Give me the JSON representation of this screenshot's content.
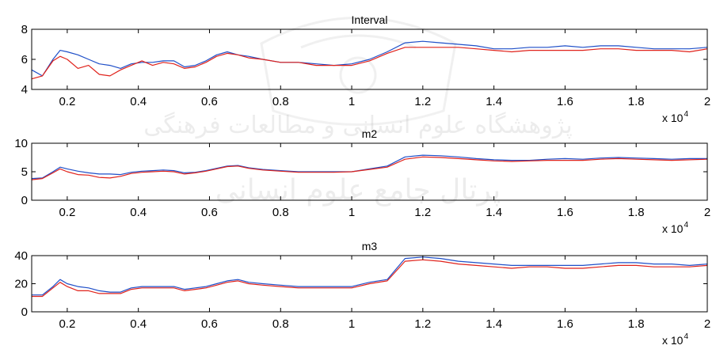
{
  "colors": {
    "series_blue": "#1f4fc8",
    "series_red": "#e0221b",
    "watermark": "#9a9a9a"
  },
  "watermark": {
    "line1": "پژوهشگاه علوم انسانی و مطالعات فرهنگی",
    "line2": "پرتال جامع علوم انسانی"
  },
  "chart_data": [
    {
      "type": "line",
      "title": "Interval",
      "xlim": [
        1000,
        20000
      ],
      "ylim": [
        4,
        8
      ],
      "xticks": [
        2000,
        4000,
        6000,
        8000,
        10000,
        12000,
        14000,
        16000,
        18000,
        20000
      ],
      "xtick_labels": [
        "0.2",
        "0.4",
        "0.6",
        "0.8",
        "1",
        "1.2",
        "1.4",
        "1.6",
        "1.8",
        "2"
      ],
      "yticks": [
        4,
        6,
        8
      ],
      "ytick_labels": [
        "4",
        "6",
        "8"
      ],
      "x_multiplier_base": "x 10",
      "x_multiplier_exp": "4",
      "x": [
        1000,
        1300,
        1600,
        1800,
        2000,
        2300,
        2600,
        2900,
        3200,
        3500,
        3800,
        4100,
        4400,
        4700,
        5000,
        5300,
        5600,
        5900,
        6200,
        6500,
        6800,
        7100,
        7500,
        8000,
        8500,
        9000,
        9500,
        10000,
        10500,
        11000,
        11500,
        12000,
        12500,
        13000,
        13500,
        14000,
        14500,
        15000,
        15500,
        16000,
        16500,
        17000,
        17500,
        18000,
        18500,
        19000,
        19500,
        20000
      ],
      "series": [
        {
          "color": "#1f4fc8",
          "values": [
            5.3,
            4.9,
            6.0,
            6.6,
            6.5,
            6.3,
            6.0,
            5.7,
            5.6,
            5.4,
            5.7,
            5.8,
            5.8,
            5.9,
            5.9,
            5.5,
            5.6,
            5.9,
            6.3,
            6.5,
            6.3,
            6.2,
            6.0,
            5.8,
            5.8,
            5.7,
            5.6,
            5.7,
            6.0,
            6.5,
            7.1,
            7.2,
            7.1,
            7.0,
            6.9,
            6.7,
            6.7,
            6.8,
            6.8,
            6.9,
            6.8,
            6.9,
            6.9,
            6.8,
            6.7,
            6.7,
            6.7,
            6.8
          ]
        },
        {
          "color": "#e0221b",
          "values": [
            4.7,
            4.9,
            5.9,
            6.2,
            6.0,
            5.4,
            5.6,
            5.0,
            4.9,
            5.3,
            5.6,
            5.9,
            5.6,
            5.8,
            5.7,
            5.4,
            5.5,
            5.8,
            6.2,
            6.4,
            6.3,
            6.1,
            6.0,
            5.8,
            5.8,
            5.6,
            5.6,
            5.6,
            5.9,
            6.4,
            6.8,
            6.8,
            6.8,
            6.8,
            6.7,
            6.6,
            6.5,
            6.6,
            6.6,
            6.6,
            6.6,
            6.7,
            6.7,
            6.6,
            6.6,
            6.6,
            6.5,
            6.7
          ]
        }
      ]
    },
    {
      "type": "line",
      "title": "m2",
      "xlim": [
        1000,
        20000
      ],
      "ylim": [
        0,
        10
      ],
      "xticks": [
        2000,
        4000,
        6000,
        8000,
        10000,
        12000,
        14000,
        16000,
        18000,
        20000
      ],
      "xtick_labels": [
        "0.2",
        "0.4",
        "0.6",
        "0.8",
        "1",
        "1.2",
        "1.4",
        "1.6",
        "1.8",
        "2"
      ],
      "yticks": [
        0,
        5,
        10
      ],
      "ytick_labels": [
        "0",
        "5",
        "10"
      ],
      "x_multiplier_base": "x 10",
      "x_multiplier_exp": "4",
      "x": [
        1000,
        1300,
        1600,
        1800,
        2000,
        2300,
        2600,
        2900,
        3200,
        3500,
        3800,
        4100,
        4400,
        4700,
        5000,
        5300,
        5600,
        5900,
        6200,
        6500,
        6800,
        7100,
        7500,
        8000,
        8500,
        9000,
        9500,
        10000,
        10500,
        11000,
        11500,
        12000,
        12500,
        13000,
        13500,
        14000,
        14500,
        15000,
        15500,
        16000,
        16500,
        17000,
        17500,
        18000,
        18500,
        19000,
        19500,
        20000
      ],
      "series": [
        {
          "color": "#1f4fc8",
          "values": [
            3.8,
            3.9,
            5.0,
            5.8,
            5.5,
            5.1,
            4.8,
            4.6,
            4.6,
            4.5,
            4.9,
            5.1,
            5.2,
            5.3,
            5.2,
            4.8,
            4.9,
            5.2,
            5.6,
            6.0,
            6.1,
            5.7,
            5.4,
            5.2,
            5.0,
            5.0,
            5.0,
            5.0,
            5.5,
            6.0,
            7.6,
            7.9,
            7.8,
            7.6,
            7.3,
            7.1,
            7.0,
            7.0,
            7.2,
            7.3,
            7.2,
            7.4,
            7.5,
            7.4,
            7.3,
            7.2,
            7.3,
            7.3
          ]
        },
        {
          "color": "#e0221b",
          "values": [
            3.6,
            3.8,
            4.8,
            5.5,
            5.0,
            4.5,
            4.4,
            4.0,
            3.9,
            4.2,
            4.7,
            4.9,
            5.0,
            5.1,
            5.0,
            4.6,
            4.8,
            5.1,
            5.5,
            5.9,
            6.0,
            5.6,
            5.3,
            5.1,
            4.9,
            4.9,
            4.9,
            5.0,
            5.4,
            5.8,
            7.2,
            7.6,
            7.5,
            7.3,
            7.1,
            6.9,
            6.8,
            6.9,
            7.0,
            7.0,
            7.0,
            7.2,
            7.3,
            7.2,
            7.1,
            7.0,
            7.1,
            7.2
          ]
        }
      ]
    },
    {
      "type": "line",
      "title": "m3",
      "xlim": [
        1000,
        20000
      ],
      "ylim": [
        0,
        40
      ],
      "xticks": [
        2000,
        4000,
        6000,
        8000,
        10000,
        12000,
        14000,
        16000,
        18000,
        20000
      ],
      "xtick_labels": [
        "0.2",
        "0.4",
        "0.6",
        "0.8",
        "1",
        "1.2",
        "1.4",
        "1.6",
        "1.8",
        "2"
      ],
      "yticks": [
        0,
        20,
        40
      ],
      "ytick_labels": [
        "0",
        "20",
        "40"
      ],
      "x_multiplier_base": "x 10",
      "x_multiplier_exp": "4",
      "x": [
        1000,
        1300,
        1600,
        1800,
        2000,
        2300,
        2600,
        2900,
        3200,
        3500,
        3800,
        4100,
        4400,
        4700,
        5000,
        5300,
        5600,
        5900,
        6200,
        6500,
        6800,
        7100,
        7500,
        8000,
        8500,
        9000,
        9500,
        10000,
        10500,
        11000,
        11500,
        12000,
        12500,
        13000,
        13500,
        14000,
        14500,
        15000,
        15500,
        16000,
        16500,
        17000,
        17500,
        18000,
        18500,
        19000,
        19500,
        20000
      ],
      "series": [
        {
          "color": "#1f4fc8",
          "values": [
            12,
            12,
            18,
            23,
            20,
            18,
            17,
            15,
            14,
            14,
            17,
            18,
            18,
            18,
            18,
            16,
            17,
            18,
            20,
            22,
            23,
            21,
            20,
            19,
            18,
            18,
            18,
            18,
            21,
            23,
            38,
            39,
            38,
            36,
            35,
            34,
            33,
            33,
            33,
            33,
            33,
            34,
            35,
            35,
            34,
            34,
            33,
            34
          ]
        },
        {
          "color": "#e0221b",
          "values": [
            11,
            11,
            17,
            21,
            18,
            15,
            15,
            13,
            13,
            13,
            16,
            17,
            17,
            17,
            17,
            15,
            16,
            17,
            19,
            21,
            22,
            20,
            19,
            18,
            17,
            17,
            17,
            17,
            20,
            22,
            36,
            37,
            36,
            34,
            33,
            32,
            31,
            32,
            32,
            31,
            31,
            32,
            33,
            33,
            32,
            32,
            32,
            33
          ]
        }
      ]
    }
  ]
}
